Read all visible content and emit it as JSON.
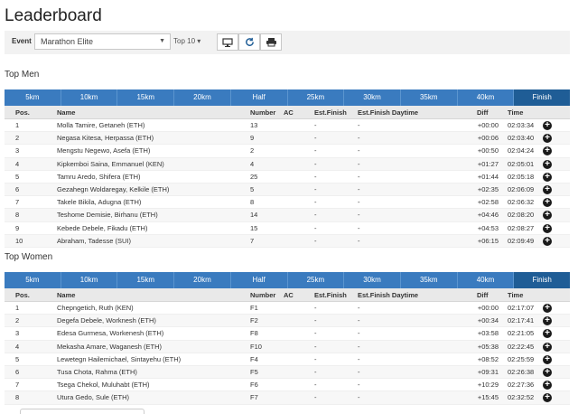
{
  "page": {
    "title": "Leaderboard"
  },
  "toolbar": {
    "event_label": "Event",
    "event_value": "Marathon Elite",
    "top_n": "Top 10 ▾",
    "buttons": [
      "monitor-icon",
      "refresh-icon",
      "printer-icon"
    ]
  },
  "splits": [
    "5km",
    "10km",
    "15km",
    "20km",
    "Half",
    "25km",
    "30km",
    "35km",
    "40km",
    "Finish"
  ],
  "active_split": "Finish",
  "columns": {
    "pos": "Pos.",
    "name": "Name",
    "number": "Number",
    "ac": "AC",
    "est_finish": "Est.Finish",
    "est_daytime": "Est.Finish Daytime",
    "diff": "Diff",
    "time": "Time"
  },
  "men": {
    "title": "Top Men",
    "rows": [
      {
        "pos": "1",
        "name": "Molla Tamire, Getaneh (ETH)",
        "number": "13",
        "est": "-",
        "estd": "-",
        "diff": "+00:00",
        "time": "02:03:34"
      },
      {
        "pos": "2",
        "name": "Negasa Kitesa, Herpassa (ETH)",
        "number": "9",
        "est": "-",
        "estd": "-",
        "diff": "+00:06",
        "time": "02:03:40"
      },
      {
        "pos": "3",
        "name": "Mengstu Negewo, Asefa (ETH)",
        "number": "2",
        "est": "-",
        "estd": "-",
        "diff": "+00:50",
        "time": "02:04:24"
      },
      {
        "pos": "4",
        "name": "Kipkemboi Saina, Emmanuel (KEN)",
        "number": "4",
        "est": "-",
        "estd": "-",
        "diff": "+01:27",
        "time": "02:05:01"
      },
      {
        "pos": "5",
        "name": "Tamru Aredo, Shifera (ETH)",
        "number": "25",
        "est": "-",
        "estd": "-",
        "diff": "+01:44",
        "time": "02:05:18"
      },
      {
        "pos": "6",
        "name": "Gezahegn Woldaregay, Kelkile (ETH)",
        "number": "5",
        "est": "-",
        "estd": "-",
        "diff": "+02:35",
        "time": "02:06:09"
      },
      {
        "pos": "7",
        "name": "Takele Bikila, Adugna (ETH)",
        "number": "8",
        "est": "-",
        "estd": "-",
        "diff": "+02:58",
        "time": "02:06:32"
      },
      {
        "pos": "8",
        "name": "Teshome Demisie, Birhanu (ETH)",
        "number": "14",
        "est": "-",
        "estd": "-",
        "diff": "+04:46",
        "time": "02:08:20"
      },
      {
        "pos": "9",
        "name": "Kebede Debele, Fikadu (ETH)",
        "number": "15",
        "est": "-",
        "estd": "-",
        "diff": "+04:53",
        "time": "02:08:27"
      },
      {
        "pos": "10",
        "name": "Abraham, Tadesse (SUI)",
        "number": "7",
        "est": "-",
        "estd": "-",
        "diff": "+06:15",
        "time": "02:09:49"
      }
    ]
  },
  "women": {
    "title": "Top Women",
    "rows": [
      {
        "pos": "1",
        "name": "Chepngetich, Ruth (KEN)",
        "number": "F1",
        "est": "-",
        "estd": "-",
        "diff": "+00:00",
        "time": "02:17:07"
      },
      {
        "pos": "2",
        "name": "Degefa Debele, Worknesh (ETH)",
        "number": "F2",
        "est": "-",
        "estd": "-",
        "diff": "+00:34",
        "time": "02:17:41"
      },
      {
        "pos": "3",
        "name": "Edesa Gurmesa, Workenesh (ETH)",
        "number": "F8",
        "est": "-",
        "estd": "-",
        "diff": "+03:58",
        "time": "02:21:05"
      },
      {
        "pos": "4",
        "name": "Mekasha Amare, Waganesh (ETH)",
        "number": "F10",
        "est": "-",
        "estd": "-",
        "diff": "+05:38",
        "time": "02:22:45"
      },
      {
        "pos": "5",
        "name": "Lewetegn Hailemichael, Sintayehu (ETH)",
        "number": "F4",
        "est": "-",
        "estd": "-",
        "diff": "+08:52",
        "time": "02:25:59"
      },
      {
        "pos": "6",
        "name": "Tusa Chota, Rahma (ETH)",
        "number": "F5",
        "est": "-",
        "estd": "-",
        "diff": "+09:31",
        "time": "02:26:38"
      },
      {
        "pos": "7",
        "name": "Tsega Chekol, Muluhabt (ETH)",
        "number": "F6",
        "est": "-",
        "estd": "-",
        "diff": "+10:29",
        "time": "02:27:36"
      },
      {
        "pos": "8",
        "name": "Utura Gedo, Sule (ETH)",
        "number": "F7",
        "est": "-",
        "estd": "-",
        "diff": "+15:45",
        "time": "02:32:52"
      }
    ]
  },
  "colors": {
    "tab_bg": "#3a7bbf",
    "tab_active": "#1f5d96",
    "header_bg": "#e9e9e9"
  }
}
